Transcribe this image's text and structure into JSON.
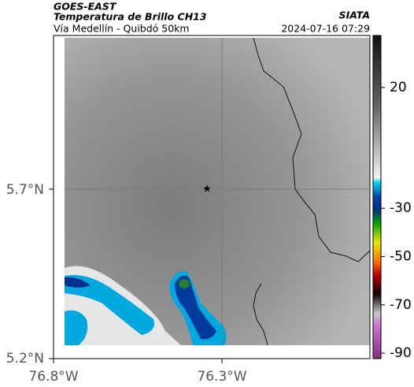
{
  "header": {
    "title": "GOES-EAST",
    "subtitle": "Temperatura de Brillo CH13",
    "location": "Vía Medellín - Quibdó 50km",
    "source": "SIATA",
    "datetime": "2024-07-16 07:29"
  },
  "axes": {
    "y_labels": [
      "5.7°N",
      "5.2°N"
    ],
    "x_labels": [
      "76.8°W",
      "76.3°W"
    ]
  },
  "colorbar": {
    "ticks": [
      20,
      -30,
      -50,
      -70,
      -90
    ]
  }
}
